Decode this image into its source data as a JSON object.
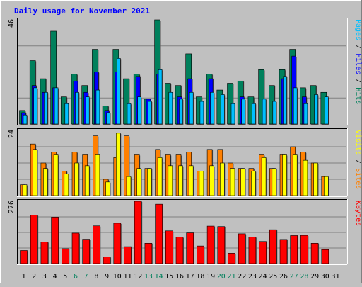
{
  "chart_data": {
    "type": "bar",
    "title": "Daily usage for November 2021",
    "days": [
      "1",
      "2",
      "3",
      "4",
      "5",
      "6",
      "7",
      "8",
      "9",
      "10",
      "11",
      "12",
      "13",
      "14",
      "15",
      "16",
      "17",
      "18",
      "19",
      "20",
      "21",
      "22",
      "23",
      "24",
      "25",
      "26",
      "27",
      "28",
      "29",
      "30",
      "31"
    ],
    "weekend_days": [
      "6",
      "7",
      "13",
      "14",
      "20",
      "21",
      "27",
      "28"
    ],
    "panels": [
      {
        "id": "hits_files_pages",
        "ymax_label": "46",
        "ylim": [
          0,
          46
        ],
        "series": [
          {
            "name": "Hits",
            "color": "#00805c",
            "values": [
              6,
              28,
              20,
              41,
              12,
              22,
              17,
              33,
              8,
              33,
              20,
              22,
              11,
              46,
              18,
              17,
              31,
              12,
              22,
              15,
              18,
              19,
              12,
              24,
              17,
              24,
              33,
              16,
              17,
              14,
              0
            ]
          },
          {
            "name": "Files",
            "color": "#0000ff",
            "values": [
              5,
              17,
              14,
              16,
              0,
              19,
              14,
              23,
              6,
              23,
              0,
              21,
              11,
              22,
              0,
              12,
              20,
              0,
              20,
              0,
              0,
              12,
              0,
              0,
              0,
              20,
              30,
              12,
              0,
              0,
              0
            ]
          },
          {
            "name": "Pages",
            "color": "#00bfff",
            "values": [
              4,
              16,
              14,
              16,
              9,
              14,
              12,
              15,
              5,
              29,
              9,
              12,
              10,
              24,
              14,
              11,
              14,
              10,
              14,
              13,
              9,
              11,
              9,
              11,
              10,
              21,
              16,
              9,
              13,
              12,
              0
            ]
          }
        ]
      },
      {
        "id": "sites_visits",
        "ymax_label": "24",
        "ylim": [
          0,
          24
        ],
        "series": [
          {
            "name": "Sites",
            "color": "#ff8000",
            "values": [
              4,
              19,
              12,
              16,
              9,
              16,
              15,
              22,
              6,
              14,
              22,
              15,
              10,
              17,
              15,
              15,
              16,
              9,
              17,
              17,
              12,
              10,
              10,
              15,
              10,
              15,
              18,
              16,
              12,
              7,
              0
            ]
          },
          {
            "name": "Visits",
            "color": "#ffff00",
            "values": [
              4,
              17,
              10,
              15,
              8,
              12,
              11,
              15,
              5,
              23,
              7,
              10,
              10,
              14,
              11,
              11,
              11,
              9,
              11,
              12,
              10,
              10,
              9,
              14,
              10,
              15,
              15,
              13,
              12,
              7,
              0
            ]
          }
        ]
      },
      {
        "id": "kbytes",
        "ymax_label": "276",
        "ylim": [
          0,
          276
        ],
        "series": [
          {
            "name": "KBytes",
            "color": "#ff0000",
            "values": [
              58,
              215,
              96,
              206,
              66,
              135,
              108,
              167,
              30,
              179,
              75,
              276,
              90,
              263,
              145,
              117,
              136,
              78,
              166,
              164,
              46,
              132,
              118,
              98,
              150,
              107,
              124,
              125,
              90,
              62,
              0
            ]
          }
        ]
      }
    ]
  }
}
